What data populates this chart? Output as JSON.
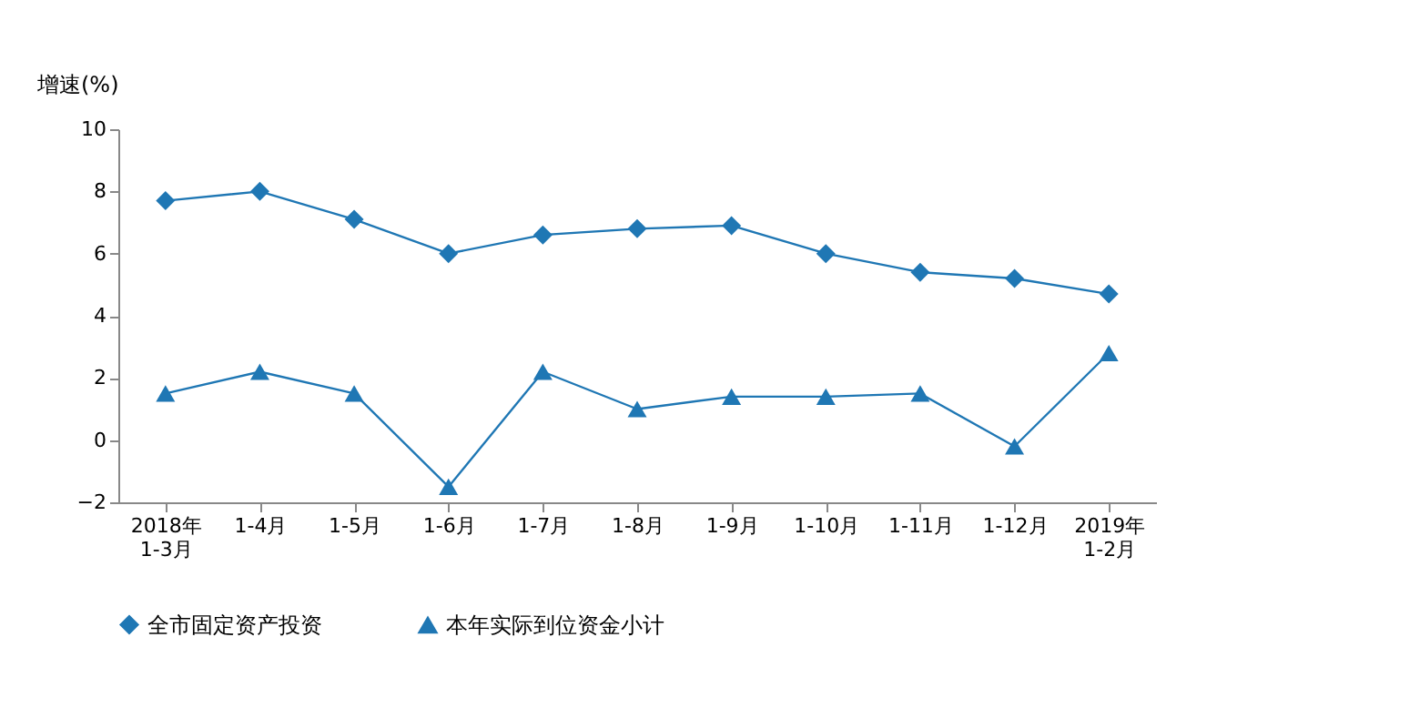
{
  "chart_data": {
    "type": "line",
    "ylabel": "增速(%)",
    "categories": [
      "2018年\n1-3月",
      "1-4月",
      "1-5月",
      "1-6月",
      "1-7月",
      "1-8月",
      "1-9月",
      "1-10月",
      "1-11月",
      "1-12月",
      "2019年\n1-2月"
    ],
    "series": [
      {
        "name": "全市固定资产投资",
        "color": "#1f77b4",
        "marker": "diamond",
        "values": [
          7.7,
          8.0,
          7.1,
          6.0,
          6.6,
          6.8,
          6.9,
          6.0,
          5.4,
          5.2,
          4.7
        ]
      },
      {
        "name": "本年实际到位资金小计",
        "color": "#1f77b4",
        "marker": "triangle",
        "values": [
          1.5,
          2.2,
          1.5,
          -1.5,
          2.2,
          1.0,
          1.4,
          1.4,
          1.5,
          -0.2,
          2.8
        ]
      }
    ],
    "ylim": [
      -2,
      10
    ],
    "yticks": [
      -2,
      0,
      2,
      4,
      6,
      8,
      10
    ],
    "grid": false,
    "legend": "bottom",
    "line_style": "solid"
  }
}
